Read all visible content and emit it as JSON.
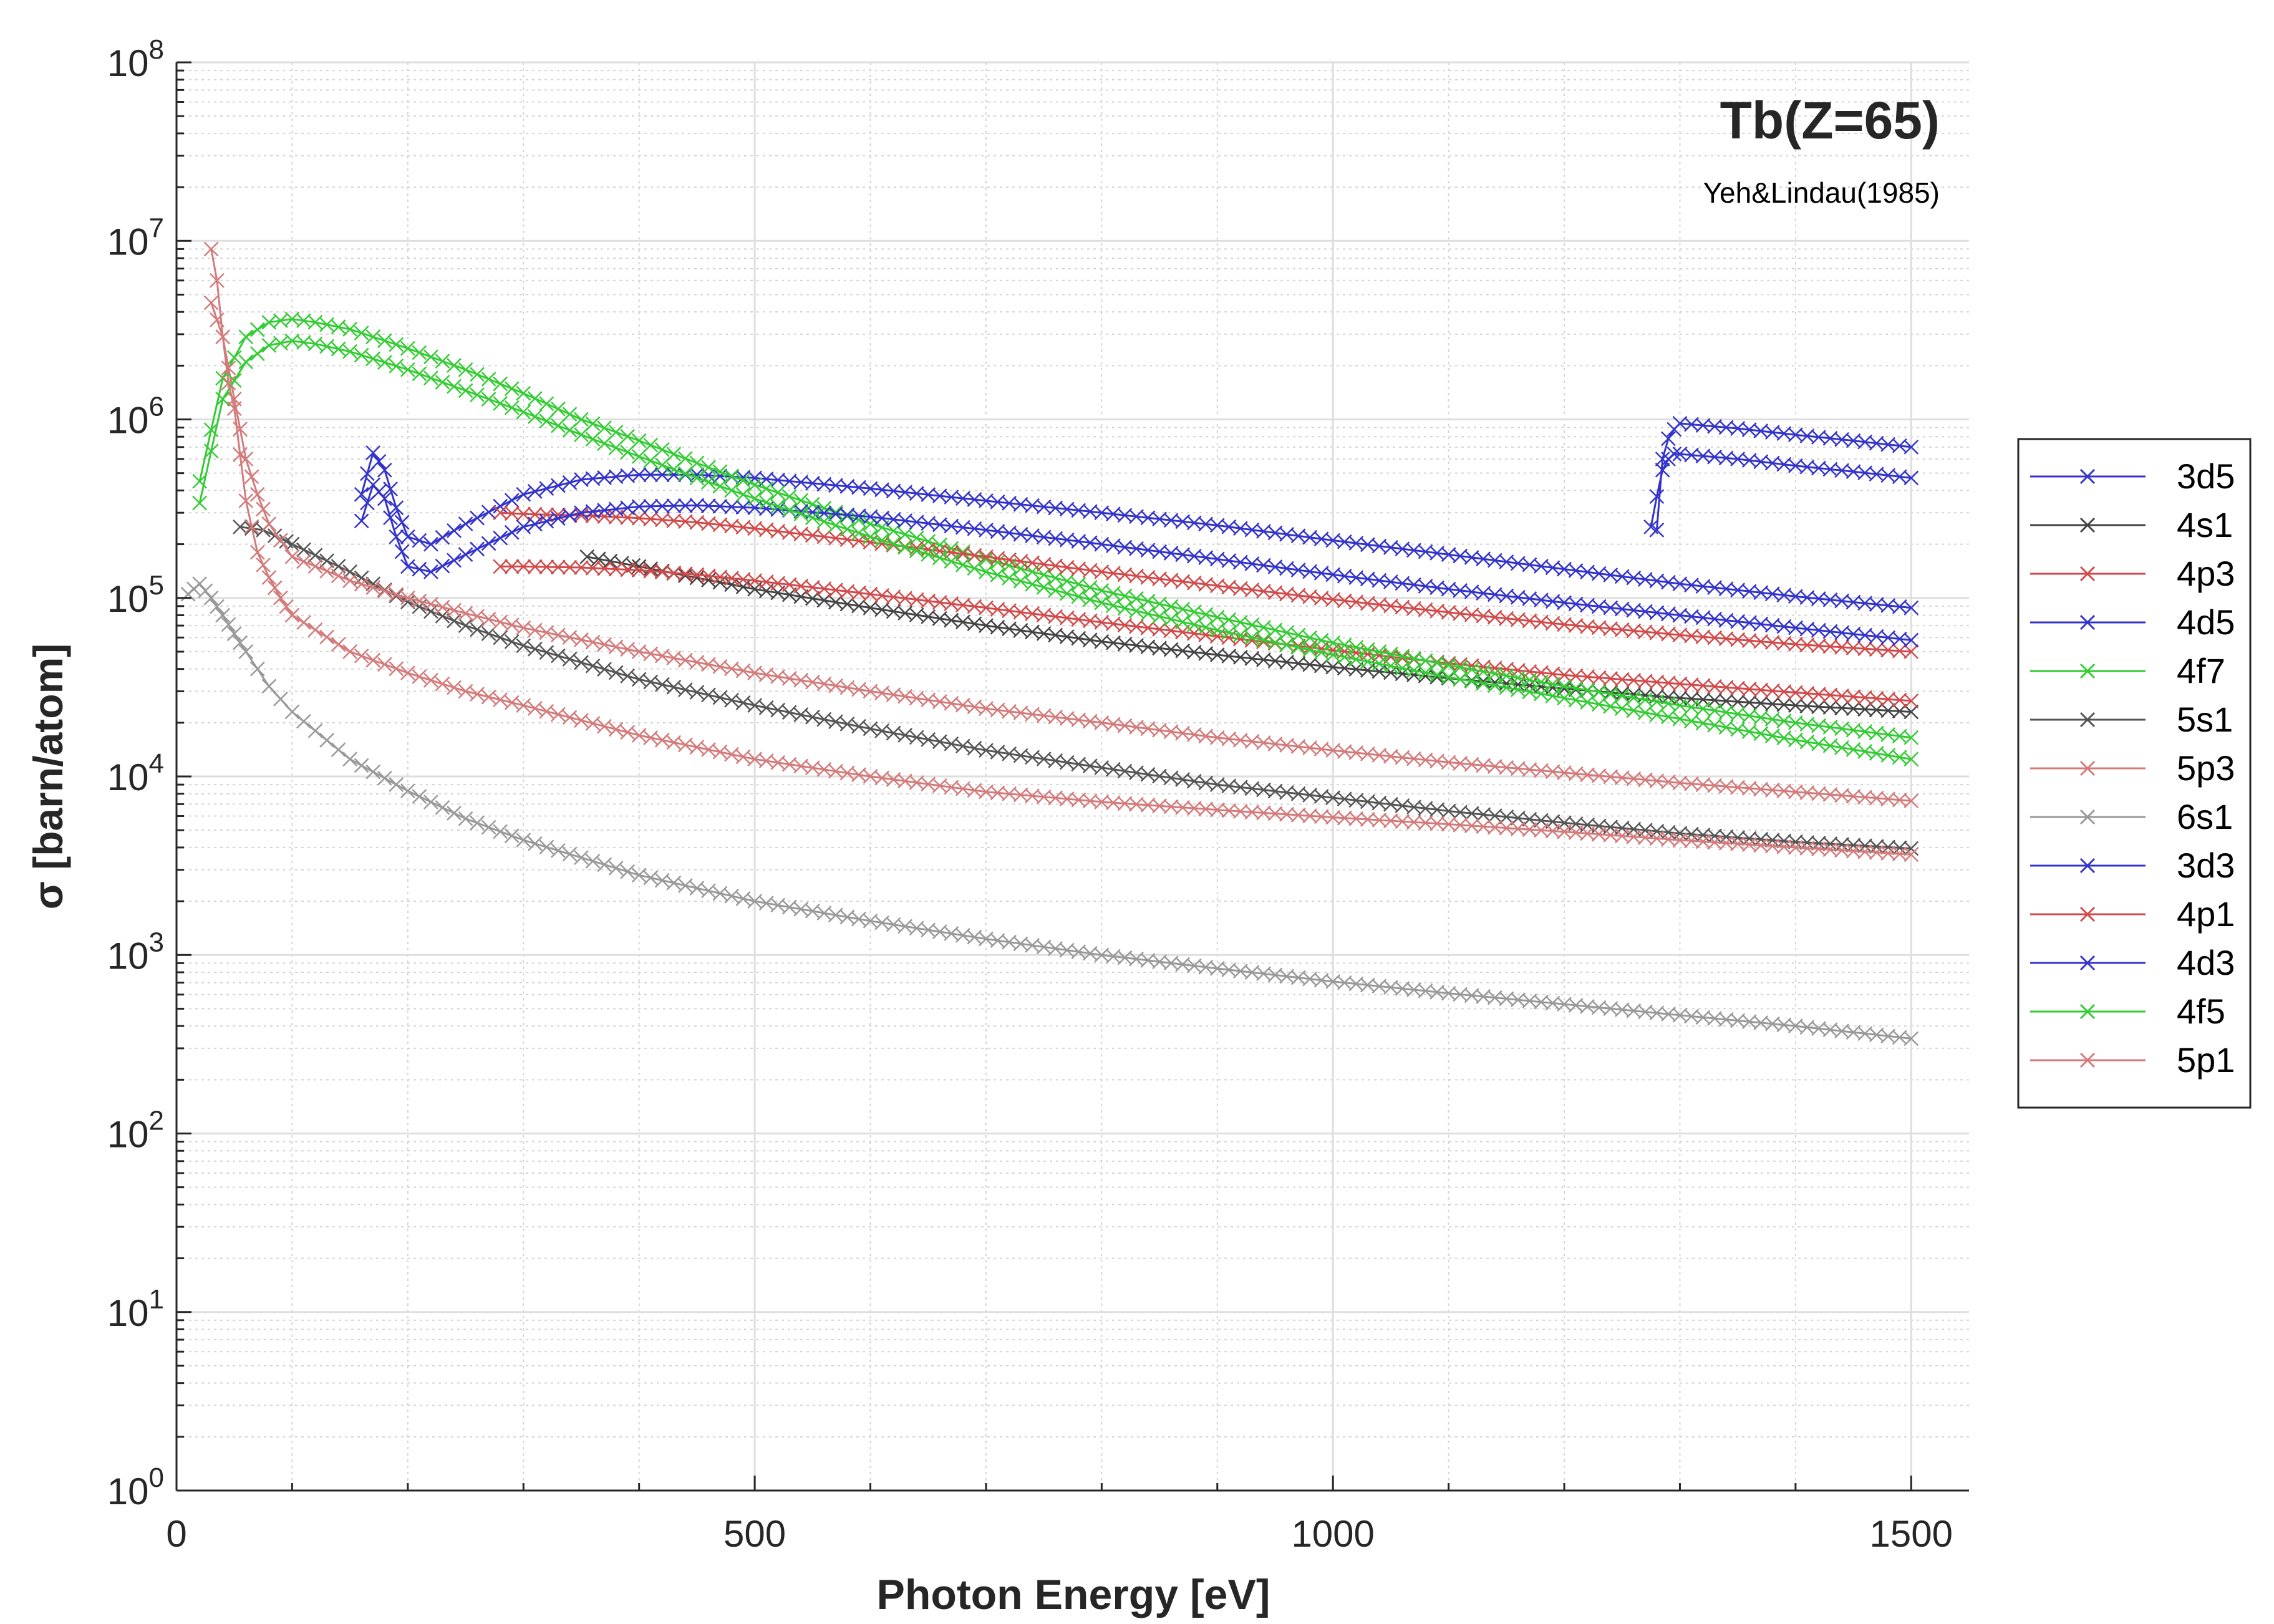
{
  "chart_data": {
    "type": "line",
    "title": "Tb(Z=65)",
    "subtitle": "Yeh&Lindau(1985)",
    "xlabel": "Photon Energy [eV]",
    "ylabel": "σ [barn/atom]",
    "xlim": [
      0,
      1550
    ],
    "ylim": [
      1,
      100000000
    ],
    "yscale": "log",
    "grid": true,
    "minor_grid": true,
    "legend_position": "outside right",
    "x_ticks": [
      {
        "value": 0,
        "label": "0"
      },
      {
        "value": 500,
        "label": "500"
      },
      {
        "value": 1000,
        "label": "1000"
      },
      {
        "value": 1500,
        "label": "1500"
      }
    ],
    "y_ticks": [
      {
        "value": 1,
        "base": "10",
        "exp": "0"
      },
      {
        "value": 10,
        "base": "10",
        "exp": "1"
      },
      {
        "value": 100,
        "base": "10",
        "exp": "2"
      },
      {
        "value": 1000,
        "base": "10",
        "exp": "3"
      },
      {
        "value": 10000,
        "base": "10",
        "exp": "4"
      },
      {
        "value": 100000,
        "base": "10",
        "exp": "5"
      },
      {
        "value": 1000000,
        "base": "10",
        "exp": "6"
      },
      {
        "value": 10000000,
        "base": "10",
        "exp": "7"
      },
      {
        "value": 100000000,
        "base": "10",
        "exp": "8"
      }
    ],
    "marker": "x",
    "series": [
      {
        "name": "3d5",
        "color": "#3333cc",
        "x": [
          1280,
          1285,
          1290,
          1295,
          1300,
          1350,
          1400,
          1450,
          1500
        ],
        "y": [
          240000,
          600000,
          780000,
          880000,
          950000,
          890000,
          820000,
          760000,
          700000
        ]
      },
      {
        "name": "4s1",
        "color": "#444444",
        "x": [
          355,
          400,
          500,
          600,
          700,
          800,
          900,
          1000,
          1100,
          1200,
          1300,
          1400,
          1500
        ],
        "y": [
          170000,
          150000,
          112000,
          88000,
          70000,
          57000,
          48000,
          41000,
          35500,
          31000,
          27500,
          25000,
          23000
        ]
      },
      {
        "name": "4p3",
        "color": "#d24a4a",
        "x": [
          280,
          300,
          350,
          400,
          450,
          500,
          600,
          700,
          800,
          900,
          1000,
          1100,
          1200,
          1300,
          1400,
          1500
        ],
        "y": [
          150000,
          150000,
          148000,
          143000,
          135000,
          125000,
          105000,
          88000,
          73000,
          61000,
          51000,
          43000,
          37000,
          33000,
          29500,
          26500
        ]
      },
      {
        "name": "4d5",
        "color": "#3333cc",
        "x": [
          160,
          170,
          180,
          190,
          200,
          220,
          250,
          300,
          350,
          400,
          450,
          500,
          600,
          700,
          800,
          900,
          1000,
          1100,
          1200,
          1300,
          1400,
          1500
        ],
        "y": [
          380000,
          650000,
          520000,
          320000,
          220000,
          200000,
          260000,
          380000,
          460000,
          490000,
          490000,
          470000,
          410000,
          350000,
          300000,
          255000,
          210000,
          175000,
          145000,
          120000,
          102000,
          88000
        ]
      },
      {
        "name": "4f7",
        "color": "#33cc33",
        "x": [
          20,
          40,
          60,
          80,
          100,
          120,
          150,
          200,
          250,
          300,
          350,
          400,
          450,
          500,
          600,
          700,
          800,
          900,
          1000,
          1100,
          1200,
          1300,
          1400,
          1500
        ],
        "y": [
          450000,
          1700000,
          2900000,
          3500000,
          3650000,
          3500000,
          3200000,
          2500000,
          1900000,
          1400000,
          1000000,
          760000,
          570000,
          430000,
          260000,
          165000,
          110000,
          78000,
          56000,
          42000,
          32000,
          25000,
          20000,
          16500
        ]
      },
      {
        "name": "5s1",
        "color": "#555555",
        "x": [
          55,
          75,
          100,
          150,
          200,
          250,
          300,
          400,
          500,
          600,
          700,
          800,
          900,
          1000,
          1100,
          1200,
          1300,
          1400,
          1500
        ],
        "y": [
          250000,
          240000,
          200000,
          140000,
          95000,
          70000,
          54000,
          35000,
          25000,
          18500,
          14000,
          11200,
          9000,
          7600,
          6400,
          5500,
          4800,
          4300,
          3950
        ]
      },
      {
        "name": "5p3",
        "color": "#d47a7a",
        "x": [
          30,
          40,
          50,
          60,
          70,
          80,
          100,
          150,
          200,
          250,
          300,
          400,
          500,
          600,
          700,
          800,
          900,
          1000,
          1100,
          1200,
          1300,
          1400,
          1500
        ],
        "y": [
          4500000,
          2900000,
          1300000,
          600000,
          380000,
          260000,
          170000,
          125000,
          100000,
          82000,
          68000,
          50000,
          38000,
          30000,
          24000,
          20000,
          16500,
          14000,
          12000,
          10500,
          9200,
          8200,
          7300
        ]
      },
      {
        "name": "6s1",
        "color": "#999999",
        "x": [
          10,
          20,
          30,
          40,
          50,
          60,
          80,
          100,
          150,
          200,
          250,
          300,
          400,
          500,
          600,
          700,
          800,
          900,
          1000,
          1100,
          1200,
          1300,
          1400,
          1500
        ],
        "y": [
          105000,
          120000,
          100000,
          80000,
          63000,
          50000,
          32000,
          23000,
          12500,
          8300,
          5800,
          4400,
          2800,
          2000,
          1550,
          1230,
          1000,
          840,
          710,
          610,
          530,
          460,
          400,
          340
        ]
      },
      {
        "name": "3d3",
        "color": "#3333cc",
        "x": [
          1275,
          1280,
          1285,
          1290,
          1295,
          1300,
          1350,
          1400,
          1450,
          1500
        ],
        "y": [
          250000,
          370000,
          520000,
          600000,
          640000,
          640000,
          600000,
          550000,
          510000,
          470000
        ]
      },
      {
        "name": "4p1",
        "color": "#d24a4a",
        "x": [
          280,
          300,
          350,
          400,
          450,
          500,
          600,
          700,
          800,
          900,
          1000,
          1100,
          1200,
          1300,
          1400,
          1500
        ],
        "y": [
          300000,
          295000,
          290000,
          280000,
          265000,
          245000,
          205000,
          170000,
          140000,
          117000,
          98000,
          83000,
          71000,
          62000,
          55000,
          50000
        ]
      },
      {
        "name": "4d3",
        "color": "#3333cc",
        "x": [
          160,
          170,
          180,
          190,
          200,
          220,
          250,
          300,
          350,
          400,
          450,
          500,
          600,
          700,
          800,
          900,
          1000,
          1100,
          1200,
          1300,
          1400,
          1500
        ],
        "y": [
          270000,
          430000,
          360000,
          220000,
          150000,
          140000,
          175000,
          250000,
          300000,
          325000,
          330000,
          320000,
          285000,
          240000,
          200000,
          165000,
          135000,
          112000,
          94000,
          80000,
          68000,
          58000
        ]
      },
      {
        "name": "4f5",
        "color": "#33cc33",
        "x": [
          20,
          40,
          60,
          80,
          100,
          120,
          150,
          200,
          250,
          300,
          350,
          400,
          450,
          500,
          600,
          700,
          800,
          900,
          1000,
          1100,
          1200,
          1300,
          1400,
          1500
        ],
        "y": [
          340000,
          1300000,
          2100000,
          2600000,
          2750000,
          2650000,
          2400000,
          1900000,
          1450000,
          1100000,
          820000,
          620000,
          470000,
          360000,
          220000,
          140000,
          94000,
          66000,
          48000,
          36000,
          27500,
          21000,
          16000,
          12500
        ]
      },
      {
        "name": "5p1",
        "color": "#d47a7a",
        "x": [
          30,
          35,
          40,
          45,
          50,
          60,
          70,
          80,
          90,
          100,
          150,
          200,
          250,
          300,
          400,
          500,
          600,
          700,
          800,
          900,
          1000,
          1100,
          1200,
          1300,
          1400,
          1500
        ],
        "y": [
          9000000,
          6000000,
          2900000,
          1600000,
          1150000,
          350000,
          180000,
          130000,
          100000,
          80000,
          50000,
          38000,
          30000,
          25000,
          17000,
          12500,
          10000,
          8200,
          7200,
          6500,
          5900,
          5400,
          4900,
          4400,
          4000,
          3650
        ]
      }
    ]
  }
}
